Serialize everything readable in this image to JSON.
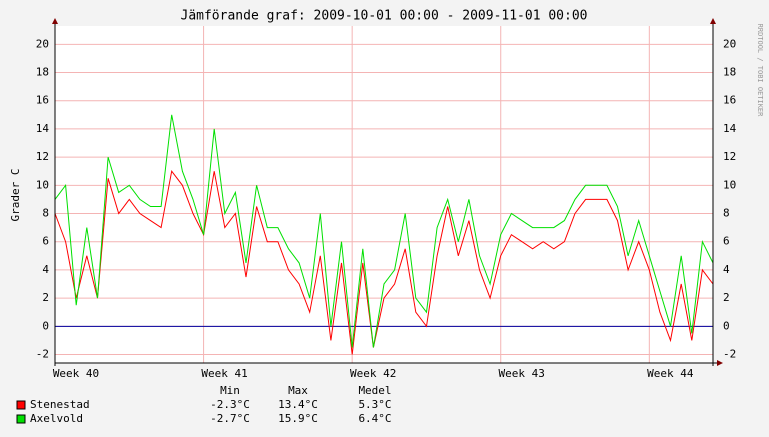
{
  "chart_data": {
    "type": "line",
    "title": "Jämförande graf: 2009-10-01 00:00 - 2009-11-01 00:00",
    "y_label": "Grader C",
    "watermark": "RRDTOOL / TOBI OETIKER",
    "x": [
      0,
      0.5,
      1,
      1.5,
      2,
      2.5,
      3,
      3.5,
      4,
      4.5,
      5,
      5.5,
      6,
      6.5,
      7,
      7.5,
      8,
      8.5,
      9,
      9.5,
      10,
      10.5,
      11,
      11.5,
      12,
      12.5,
      13,
      13.5,
      14,
      14.5,
      15,
      15.5,
      16,
      16.5,
      17,
      17.5,
      18,
      18.5,
      19,
      19.5,
      20,
      20.5,
      21,
      21.5,
      22,
      22.5,
      23,
      23.5,
      24,
      24.5,
      25,
      25.5,
      26,
      26.5,
      27,
      27.5,
      28,
      28.5,
      29,
      29.5,
      30,
      30.5,
      31
    ],
    "series": [
      {
        "name": "Stenestad",
        "color": "#ff0000",
        "values": [
          8,
          6,
          2,
          5,
          2,
          10.5,
          8,
          9,
          8,
          7.5,
          7,
          11,
          10,
          8,
          6.5,
          11,
          7,
          8,
          3.5,
          8.5,
          6,
          6,
          4,
          3,
          1,
          5,
          -1,
          4.5,
          -2,
          4.5,
          -1.5,
          2,
          3,
          5.5,
          1,
          0,
          5,
          8.5,
          5,
          7.5,
          4,
          2,
          5,
          6.5,
          6,
          5.5,
          6,
          5.5,
          6,
          8,
          9,
          9,
          9,
          7.5,
          4,
          6,
          4,
          1,
          -1,
          3,
          -1,
          4,
          3
        ]
      },
      {
        "name": "Axelvold",
        "color": "#00e000",
        "values": [
          9,
          10,
          1.5,
          7,
          2,
          12,
          9.5,
          10,
          9,
          8.5,
          8.5,
          15,
          11,
          9,
          6.5,
          14,
          8,
          9.5,
          4.5,
          10,
          7,
          7,
          5.5,
          4.5,
          2,
          8,
          0,
          6,
          -1.5,
          5.5,
          -1.5,
          3,
          4,
          8,
          2,
          1,
          7,
          9,
          6,
          9,
          5,
          3,
          6.5,
          8,
          7.5,
          7,
          7,
          7,
          7.5,
          9,
          10,
          10,
          10,
          8.5,
          5,
          7.5,
          5,
          2.5,
          0,
          5,
          -0.5,
          6,
          4.5
        ]
      }
    ],
    "xlim": [
      0,
      31
    ],
    "xticks": [
      {
        "value": 0,
        "label": "Week 40"
      },
      {
        "value": 7,
        "label": "Week 41"
      },
      {
        "value": 14,
        "label": "Week 42"
      },
      {
        "value": 21,
        "label": "Week 43"
      },
      {
        "value": 28,
        "label": "Week 44"
      }
    ],
    "ylim": [
      -2.6,
      21.3
    ],
    "yticks": [
      -2,
      0,
      2,
      4,
      6,
      8,
      10,
      12,
      14,
      16,
      18,
      20
    ],
    "hrule": {
      "value": 0,
      "color": "#0000a0"
    },
    "grid": true,
    "stats_header": [
      "Min",
      "Max",
      "Medel"
    ],
    "stats": [
      [
        "-2.3°C",
        "13.4°C",
        "5.3°C"
      ],
      [
        "-2.7°C",
        "15.9°C",
        "6.4°C"
      ]
    ]
  }
}
